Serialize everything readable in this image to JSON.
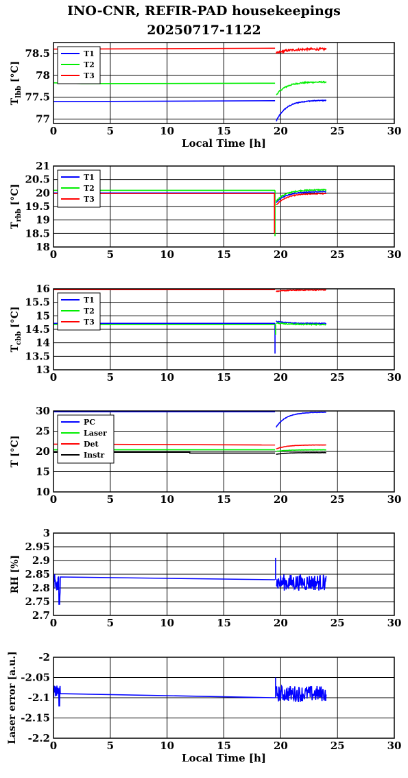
{
  "title": {
    "line1": "INO-CNR, REFIR-PAD housekeepings",
    "line2": "20250717-1122"
  },
  "colors": {
    "blue": "#0000ff",
    "green": "#00ee00",
    "red": "#ff0000",
    "black": "#000000"
  },
  "chart_data": [
    {
      "type": "line",
      "id": "tlbb",
      "ylabel": {
        "base": "T",
        "sub": "lbb",
        "unit": " [°C]"
      },
      "xlabel": "Local Time [h]",
      "xlim": [
        0,
        30
      ],
      "ylim": [
        76.9,
        78.75
      ],
      "xticks": [
        0,
        5,
        10,
        15,
        20,
        25,
        30
      ],
      "yticks": [
        77,
        77.5,
        78,
        78.5
      ],
      "ytick_labels": [
        "77",
        "77.5",
        "78",
        "78.5"
      ],
      "legend": "top-left",
      "series": [
        {
          "name": "T1",
          "color": "#0000ff",
          "base": [
            [
              0,
              77.4
            ],
            [
              19.5,
              77.42
            ]
          ],
          "gap": [
            19.6,
            0
          ],
          "recovery": {
            "from": 19.6,
            "to": 24.0,
            "start": 76.95,
            "end": 77.43,
            "noise": 0.02
          }
        },
        {
          "name": "T2",
          "color": "#00ee00",
          "base": [
            [
              0,
              77.83
            ],
            [
              2.5,
              77.81
            ],
            [
              19.5,
              77.82
            ]
          ],
          "recovery": {
            "from": 19.6,
            "to": 24.0,
            "start": 77.55,
            "end": 77.85,
            "noise": 0.03
          }
        },
        {
          "name": "T3",
          "color": "#ff0000",
          "base": [
            [
              0,
              78.6
            ],
            [
              19.5,
              78.62
            ]
          ],
          "recovery": {
            "from": 19.6,
            "to": 24.0,
            "start": 78.5,
            "end": 78.6,
            "noise": 0.05
          }
        }
      ]
    },
    {
      "type": "line",
      "id": "trbb",
      "ylabel": {
        "base": "T",
        "sub": "rbb",
        "unit": " [°C]"
      },
      "xlabel": "",
      "xlim": [
        0,
        30
      ],
      "ylim": [
        18,
        21
      ],
      "xticks": [
        0,
        5,
        10,
        15,
        20,
        25,
        30
      ],
      "yticks": [
        18,
        18.5,
        19,
        19.5,
        20,
        20.5,
        21
      ],
      "ytick_labels": [
        "18",
        "18.5",
        "19",
        "19.5",
        "20",
        "20.5",
        "21"
      ],
      "legend": "top-left",
      "series": [
        {
          "name": "T1",
          "color": "#0000ff",
          "base": [
            [
              0,
              20.0
            ],
            [
              19.5,
              20.0
            ]
          ],
          "recovery": {
            "from": 19.6,
            "to": 24.0,
            "start": 19.65,
            "end": 20.05,
            "noise": 0.03
          }
        },
        {
          "name": "T2",
          "color": "#00ee00",
          "base": [
            [
              0,
              20.1
            ],
            [
              19.5,
              20.1
            ]
          ],
          "spike": [
            19.5,
            18.4
          ],
          "recovery": {
            "from": 19.6,
            "to": 24.0,
            "start": 19.7,
            "end": 20.12,
            "noise": 0.04
          }
        },
        {
          "name": "T3",
          "color": "#ff0000",
          "base": [
            [
              0,
              19.98
            ],
            [
              19.5,
              19.98
            ]
          ],
          "spike": [
            19.45,
            18.5
          ],
          "recovery": {
            "from": 19.6,
            "to": 24.0,
            "start": 19.55,
            "end": 19.98,
            "noise": 0.03
          }
        }
      ]
    },
    {
      "type": "line",
      "id": "tcbb",
      "ylabel": {
        "base": "T",
        "sub": "cbb",
        "unit": " [°C]"
      },
      "xlabel": "",
      "xlim": [
        0,
        30
      ],
      "ylim": [
        13,
        16
      ],
      "xticks": [
        0,
        5,
        10,
        15,
        20,
        25,
        30
      ],
      "yticks": [
        13,
        13.5,
        14,
        14.5,
        15,
        15.5,
        16
      ],
      "ytick_labels": [
        "13",
        "13.5",
        "14",
        "14.5",
        "15",
        "15.5",
        "16"
      ],
      "legend": "top-left",
      "series": [
        {
          "name": "T1",
          "color": "#0000ff",
          "base": [
            [
              0,
              14.72
            ],
            [
              19.5,
              14.72
            ]
          ],
          "spike": [
            19.5,
            13.6
          ],
          "recovery": {
            "from": 19.6,
            "to": 24.0,
            "start": 14.8,
            "end": 14.72,
            "noise": 0.03
          }
        },
        {
          "name": "T2",
          "color": "#00ee00",
          "base": [
            [
              0,
              14.68
            ],
            [
              19.5,
              14.68
            ]
          ],
          "spike": [
            19.55,
            14.3
          ],
          "recovery": {
            "from": 19.6,
            "to": 24.0,
            "start": 14.75,
            "end": 14.68,
            "noise": 0.04
          }
        },
        {
          "name": "T3",
          "color": "#ff0000",
          "base": [
            [
              0,
              15.97
            ],
            [
              19.5,
              15.97
            ]
          ],
          "recovery": {
            "from": 19.6,
            "to": 24.0,
            "start": 15.9,
            "end": 15.96,
            "noise": 0.03
          }
        }
      ]
    },
    {
      "type": "line",
      "id": "temps",
      "ylabel": {
        "base": "T",
        "sub": "",
        "unit": " [°C]"
      },
      "xlabel": "",
      "xlim": [
        0,
        30
      ],
      "ylim": [
        10,
        30
      ],
      "xticks": [
        0,
        5,
        10,
        15,
        20,
        25,
        30
      ],
      "yticks": [
        10,
        15,
        20,
        25,
        30
      ],
      "ytick_labels": [
        "10",
        "15",
        "20",
        "25",
        "30"
      ],
      "legend": "top-left",
      "series": [
        {
          "name": "PC",
          "color": "#0000ff",
          "base": [
            [
              0,
              29.8
            ],
            [
              19.5,
              29.8
            ]
          ],
          "recovery": {
            "from": 19.6,
            "to": 24.0,
            "start": 26.0,
            "end": 29.7,
            "noise": 0.1
          }
        },
        {
          "name": "Laser",
          "color": "#00ee00",
          "base": [
            [
              0,
              20.4
            ],
            [
              19.5,
              20.4
            ]
          ],
          "recovery": {
            "from": 19.6,
            "to": 24.0,
            "start": 20.0,
            "end": 20.4,
            "noise": 0.05
          }
        },
        {
          "name": "Det",
          "color": "#ff0000",
          "base": [
            [
              0,
              21.8
            ],
            [
              19.5,
              21.6
            ]
          ],
          "recovery": {
            "from": 19.6,
            "to": 24.0,
            "start": 20.6,
            "end": 21.6,
            "noise": 0.05
          }
        },
        {
          "name": "Instr",
          "color": "#000000",
          "base": [
            [
              0,
              19.8
            ],
            [
              12.0,
              19.8
            ],
            [
              12.0,
              19.6
            ],
            [
              19.5,
              19.6
            ]
          ],
          "recovery": {
            "from": 19.6,
            "to": 24.0,
            "start": 19.3,
            "end": 19.7,
            "noise": 0.05
          }
        }
      ]
    },
    {
      "type": "line",
      "id": "rh",
      "ylabel": {
        "base": "RH [%]",
        "sub": "",
        "unit": ""
      },
      "xlabel": "",
      "xlim": [
        0,
        30
      ],
      "ylim": [
        2.7,
        3.0
      ],
      "xticks": [
        0,
        5,
        10,
        15,
        20,
        25,
        30
      ],
      "yticks": [
        2.7,
        2.75,
        2.8,
        2.85,
        2.9,
        2.95,
        3.0
      ],
      "ytick_labels": [
        "2.7",
        "2.75",
        "2.8",
        "2.85",
        "2.9",
        "2.95",
        "3"
      ],
      "legend": "none",
      "series": [
        {
          "name": "RH",
          "color": "#0000ff",
          "noisy_start": {
            "from": 0,
            "to": 0.6,
            "center": 2.81,
            "amp": 0.04,
            "min": 2.74
          },
          "base": [
            [
              0.6,
              2.84
            ],
            [
              19.5,
              2.83
            ]
          ],
          "spike": [
            19.55,
            2.91
          ],
          "recovery": {
            "from": 19.6,
            "to": 24.0,
            "start": 2.82,
            "end": 2.82,
            "noise": 0.06
          }
        }
      ]
    },
    {
      "type": "line",
      "id": "laser",
      "ylabel": {
        "base": "Laser error [a.u.]",
        "sub": "",
        "unit": ""
      },
      "xlabel": "Local Time [h]",
      "xlim": [
        0,
        30
      ],
      "ylim": [
        -2.2,
        -2.0
      ],
      "xticks": [
        0,
        5,
        10,
        15,
        20,
        25,
        30
      ],
      "yticks": [
        -2.2,
        -2.15,
        -2.1,
        -2.05,
        -2.0
      ],
      "ytick_labels": [
        "-2.2",
        "-2.15",
        "-2.1",
        "-2.05",
        "-2"
      ],
      "legend": "none",
      "series": [
        {
          "name": "Laser error",
          "color": "#0000ff",
          "noisy_start": {
            "from": 0,
            "to": 0.6,
            "center": -2.085,
            "amp": 0.015,
            "min": -2.12
          },
          "base": [
            [
              0.6,
              -2.09
            ],
            [
              19.5,
              -2.1
            ]
          ],
          "spike": [
            19.55,
            -2.05
          ],
          "recovery": {
            "from": 19.6,
            "to": 24.0,
            "start": -2.09,
            "end": -2.09,
            "noise": 0.04
          }
        }
      ]
    }
  ]
}
